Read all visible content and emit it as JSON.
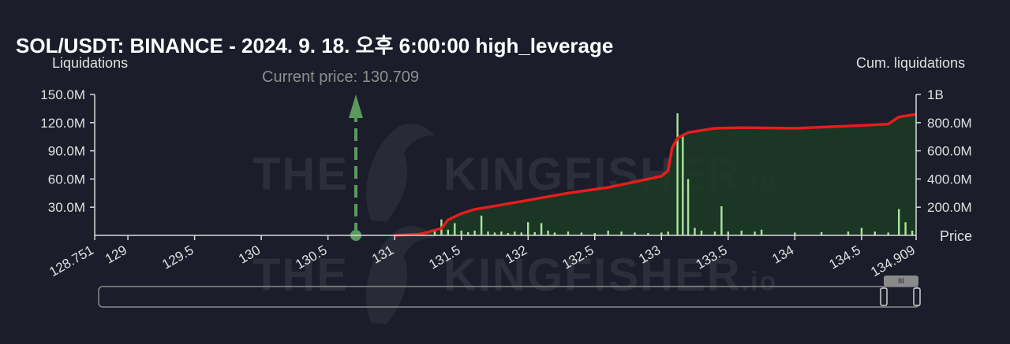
{
  "title": "SOL/USDT: BINANCE - 2024. 9. 18. 오후 6:00:00 high_leverage",
  "watermark": {
    "the": "THE",
    "brand": "KINGFISHER",
    "suffix": ".io"
  },
  "current_price_label": "Current price: 130.709",
  "colors": {
    "background": "#1b1d2a",
    "cumulative_line": "#e61d1d",
    "cumulative_fill": "#1c3a25",
    "bars": "#a8e69a",
    "current_price_marker": "#5b9a5e",
    "axis": "#d9d9d9"
  },
  "chart_data": {
    "type": "bar",
    "xlabel": "Price",
    "ylabel": "Liquidations",
    "y2label": "Cum. liquidations",
    "xlim": [
      128.751,
      134.909
    ],
    "ylim": [
      0,
      150000000
    ],
    "y2lim": [
      0,
      1000000000
    ],
    "x_ticks": [
      "128.751",
      "129",
      "129.5",
      "130",
      "130.5",
      "131",
      "131.5",
      "132",
      "132.5",
      "133",
      "133.5",
      "134",
      "134.5",
      "134.909"
    ],
    "y_ticks": [
      "150.0M",
      "120.0M",
      "90.0M",
      "60.0M",
      "30.0M"
    ],
    "y2_ticks": [
      "1B",
      "800.0M",
      "600.0M",
      "400.0M",
      "200.0M"
    ],
    "current_price": 130.709,
    "series": [
      {
        "name": "Liquidations",
        "type": "bar",
        "points": [
          [
            131.1,
            1500000
          ],
          [
            131.2,
            3000000
          ],
          [
            131.3,
            4500000
          ],
          [
            131.35,
            17000000
          ],
          [
            131.4,
            6000000
          ],
          [
            131.45,
            13000000
          ],
          [
            131.5,
            5000000
          ],
          [
            131.55,
            3500000
          ],
          [
            131.6,
            5000000
          ],
          [
            131.65,
            21000000
          ],
          [
            131.7,
            4000000
          ],
          [
            131.75,
            3000000
          ],
          [
            131.8,
            4000000
          ],
          [
            131.85,
            2500000
          ],
          [
            131.9,
            4000000
          ],
          [
            131.95,
            3000000
          ],
          [
            132.0,
            14000000
          ],
          [
            132.05,
            3500000
          ],
          [
            132.1,
            13000000
          ],
          [
            132.15,
            5000000
          ],
          [
            132.2,
            3000000
          ],
          [
            132.3,
            4000000
          ],
          [
            132.4,
            3000000
          ],
          [
            132.5,
            2500000
          ],
          [
            132.6,
            5000000
          ],
          [
            132.7,
            4000000
          ],
          [
            132.8,
            3000000
          ],
          [
            132.9,
            2500000
          ],
          [
            133.0,
            3000000
          ],
          [
            133.05,
            4000000
          ],
          [
            133.12,
            130000000
          ],
          [
            133.16,
            108000000
          ],
          [
            133.2,
            60000000
          ],
          [
            133.25,
            8000000
          ],
          [
            133.3,
            5000000
          ],
          [
            133.4,
            4000000
          ],
          [
            133.45,
            31000000
          ],
          [
            133.5,
            4000000
          ],
          [
            133.6,
            5000000
          ],
          [
            133.7,
            4000000
          ],
          [
            133.75,
            6000000
          ],
          [
            134.0,
            3000000
          ],
          [
            134.2,
            3500000
          ],
          [
            134.4,
            4000000
          ],
          [
            134.5,
            8000000
          ],
          [
            134.6,
            4000000
          ],
          [
            134.7,
            3000000
          ],
          [
            134.78,
            28000000
          ],
          [
            134.83,
            14000000
          ],
          [
            134.88,
            5000000
          ]
        ]
      },
      {
        "name": "Cum. liquidations",
        "type": "area",
        "points": [
          [
            131.0,
            0
          ],
          [
            131.2,
            10000000
          ],
          [
            131.35,
            50000000
          ],
          [
            131.4,
            110000000
          ],
          [
            131.5,
            155000000
          ],
          [
            131.6,
            185000000
          ],
          [
            131.7,
            200000000
          ],
          [
            132.0,
            250000000
          ],
          [
            132.3,
            300000000
          ],
          [
            132.6,
            340000000
          ],
          [
            132.8,
            380000000
          ],
          [
            133.0,
            420000000
          ],
          [
            133.05,
            460000000
          ],
          [
            133.08,
            620000000
          ],
          [
            133.12,
            690000000
          ],
          [
            133.2,
            730000000
          ],
          [
            133.4,
            760000000
          ],
          [
            133.6,
            765000000
          ],
          [
            134.0,
            760000000
          ],
          [
            134.5,
            780000000
          ],
          [
            134.7,
            790000000
          ],
          [
            134.78,
            840000000
          ],
          [
            134.909,
            860000000
          ]
        ]
      }
    ]
  }
}
